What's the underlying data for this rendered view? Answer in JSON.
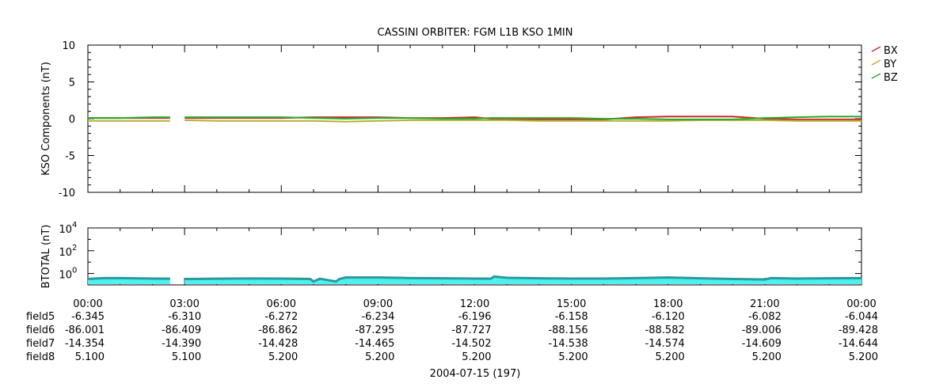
{
  "title": "CASSINI ORBITER: FGM L1B KSO 1MIN",
  "colors": {
    "bx": "#cc2a2a",
    "by": "#b8b032",
    "bz": "#2aaa2a",
    "btotal_fill": "#4ef0f0",
    "btotal_line": "#2a9a9a"
  },
  "chart_data": [
    {
      "type": "line",
      "title": "CASSINI ORBITER: FGM L1B KSO 1MIN",
      "ylabel": "KSO Components (nT)",
      "ylim": [
        -10,
        10
      ],
      "yticks": [
        -10,
        -5,
        0,
        5,
        10
      ],
      "ytick_labels": [
        "-10",
        "-5",
        "0",
        "5",
        "10"
      ],
      "xlim": [
        0,
        24
      ],
      "x_unit": "hours since 2004-07-15 00:00",
      "data_gap": [
        2.6,
        3.0
      ],
      "legend_position": "top-right (outside)",
      "series": [
        {
          "name": "BX",
          "color": "#cc2a2a",
          "x": [
            0,
            1,
            2,
            2.55,
            3.0,
            4,
            5,
            6,
            7,
            8,
            9,
            10,
            11,
            12,
            12.5,
            13,
            14,
            15,
            16,
            17,
            18,
            19,
            20,
            21,
            22,
            23,
            24
          ],
          "values": [
            0.1,
            0.1,
            0.1,
            0.1,
            0.1,
            0.1,
            0.1,
            0.1,
            0.2,
            0.2,
            0.2,
            0.1,
            0.1,
            0.2,
            0.0,
            -0.1,
            -0.1,
            -0.1,
            -0.1,
            0.2,
            0.3,
            0.3,
            0.3,
            0.0,
            -0.1,
            -0.1,
            -0.1
          ]
        },
        {
          "name": "BY",
          "color": "#b8b032",
          "x": [
            0,
            1,
            2,
            2.55,
            3.0,
            4,
            5,
            6,
            7,
            8,
            9,
            10,
            11,
            12,
            12.5,
            13,
            14,
            15,
            16,
            17,
            18,
            19,
            20,
            21,
            22,
            23,
            24
          ],
          "values": [
            -0.3,
            -0.3,
            -0.3,
            -0.3,
            -0.2,
            -0.3,
            -0.3,
            -0.3,
            -0.3,
            -0.4,
            -0.3,
            -0.2,
            -0.2,
            -0.2,
            -0.2,
            -0.2,
            -0.3,
            -0.3,
            -0.3,
            -0.3,
            -0.3,
            -0.2,
            -0.2,
            -0.2,
            -0.3,
            -0.3,
            -0.3
          ]
        },
        {
          "name": "BZ",
          "color": "#2aaa2a",
          "x": [
            0,
            1,
            2,
            2.55,
            3.0,
            4,
            5,
            6,
            7,
            8,
            9,
            10,
            11,
            12,
            12.5,
            13,
            14,
            15,
            16,
            17,
            18,
            19,
            20,
            21,
            22,
            23,
            24
          ],
          "values": [
            0.1,
            0.1,
            0.2,
            0.2,
            0.2,
            0.2,
            0.2,
            0.2,
            0.1,
            0.0,
            0.1,
            0.1,
            0.0,
            0.0,
            0.1,
            0.1,
            0.1,
            0.1,
            0.0,
            0.0,
            -0.1,
            -0.1,
            -0.1,
            0.1,
            0.2,
            0.3,
            0.3
          ]
        }
      ]
    },
    {
      "type": "area",
      "ylabel": "BTOTAL (nT)",
      "yscale": "log",
      "ylim": [
        0.1,
        10000
      ],
      "yticks": [
        1,
        100,
        10000
      ],
      "ytick_labels": [
        "10",
        "10",
        "10"
      ],
      "ytick_exponents": [
        "0",
        "2",
        "4"
      ],
      "xlim": [
        0,
        24
      ],
      "data_gap": [
        2.6,
        3.0
      ],
      "series": [
        {
          "name": "BTOTAL",
          "x": [
            0,
            0.5,
            1,
            2,
            2.55,
            3.0,
            4,
            5,
            6,
            6.9,
            7.0,
            7.2,
            7.7,
            7.8,
            8,
            9,
            10,
            11,
            12,
            12.5,
            12.6,
            13,
            14,
            15,
            16,
            17,
            18,
            19,
            20,
            21,
            21.2,
            22,
            23,
            24
          ],
          "values": [
            0.33,
            0.4,
            0.4,
            0.36,
            0.35,
            0.33,
            0.35,
            0.37,
            0.36,
            0.33,
            0.2,
            0.35,
            0.2,
            0.33,
            0.45,
            0.45,
            0.4,
            0.38,
            0.36,
            0.35,
            0.55,
            0.42,
            0.38,
            0.36,
            0.36,
            0.4,
            0.45,
            0.38,
            0.33,
            0.3,
            0.4,
            0.36,
            0.38,
            0.4
          ]
        }
      ]
    }
  ],
  "x_tick_labels": [
    "00:00",
    "03:00",
    "06:00",
    "09:00",
    "12:00",
    "15:00",
    "18:00",
    "21:00",
    "00:00"
  ],
  "ephemeris_rows": [
    {
      "label": "field5",
      "values": [
        "-6.345",
        "-6.310",
        "-6.272",
        "-6.234",
        "-6.196",
        "-6.158",
        "-6.120",
        "-6.082",
        "-6.044"
      ]
    },
    {
      "label": "field6",
      "values": [
        "-86.001",
        "-86.409",
        "-86.862",
        "-87.295",
        "-87.727",
        "-88.156",
        "-88.582",
        "-89.006",
        "-89.428"
      ]
    },
    {
      "label": "field7",
      "values": [
        "-14.354",
        "-14.390",
        "-14.428",
        "-14.465",
        "-14.502",
        "-14.538",
        "-14.574",
        "-14.609",
        "-14.644"
      ]
    },
    {
      "label": "field8",
      "values": [
        "5.100",
        "5.100",
        "5.200",
        "5.200",
        "5.200",
        "5.200",
        "5.200",
        "5.200",
        "5.200"
      ]
    }
  ],
  "date_label": "2004-07-15 (197)"
}
